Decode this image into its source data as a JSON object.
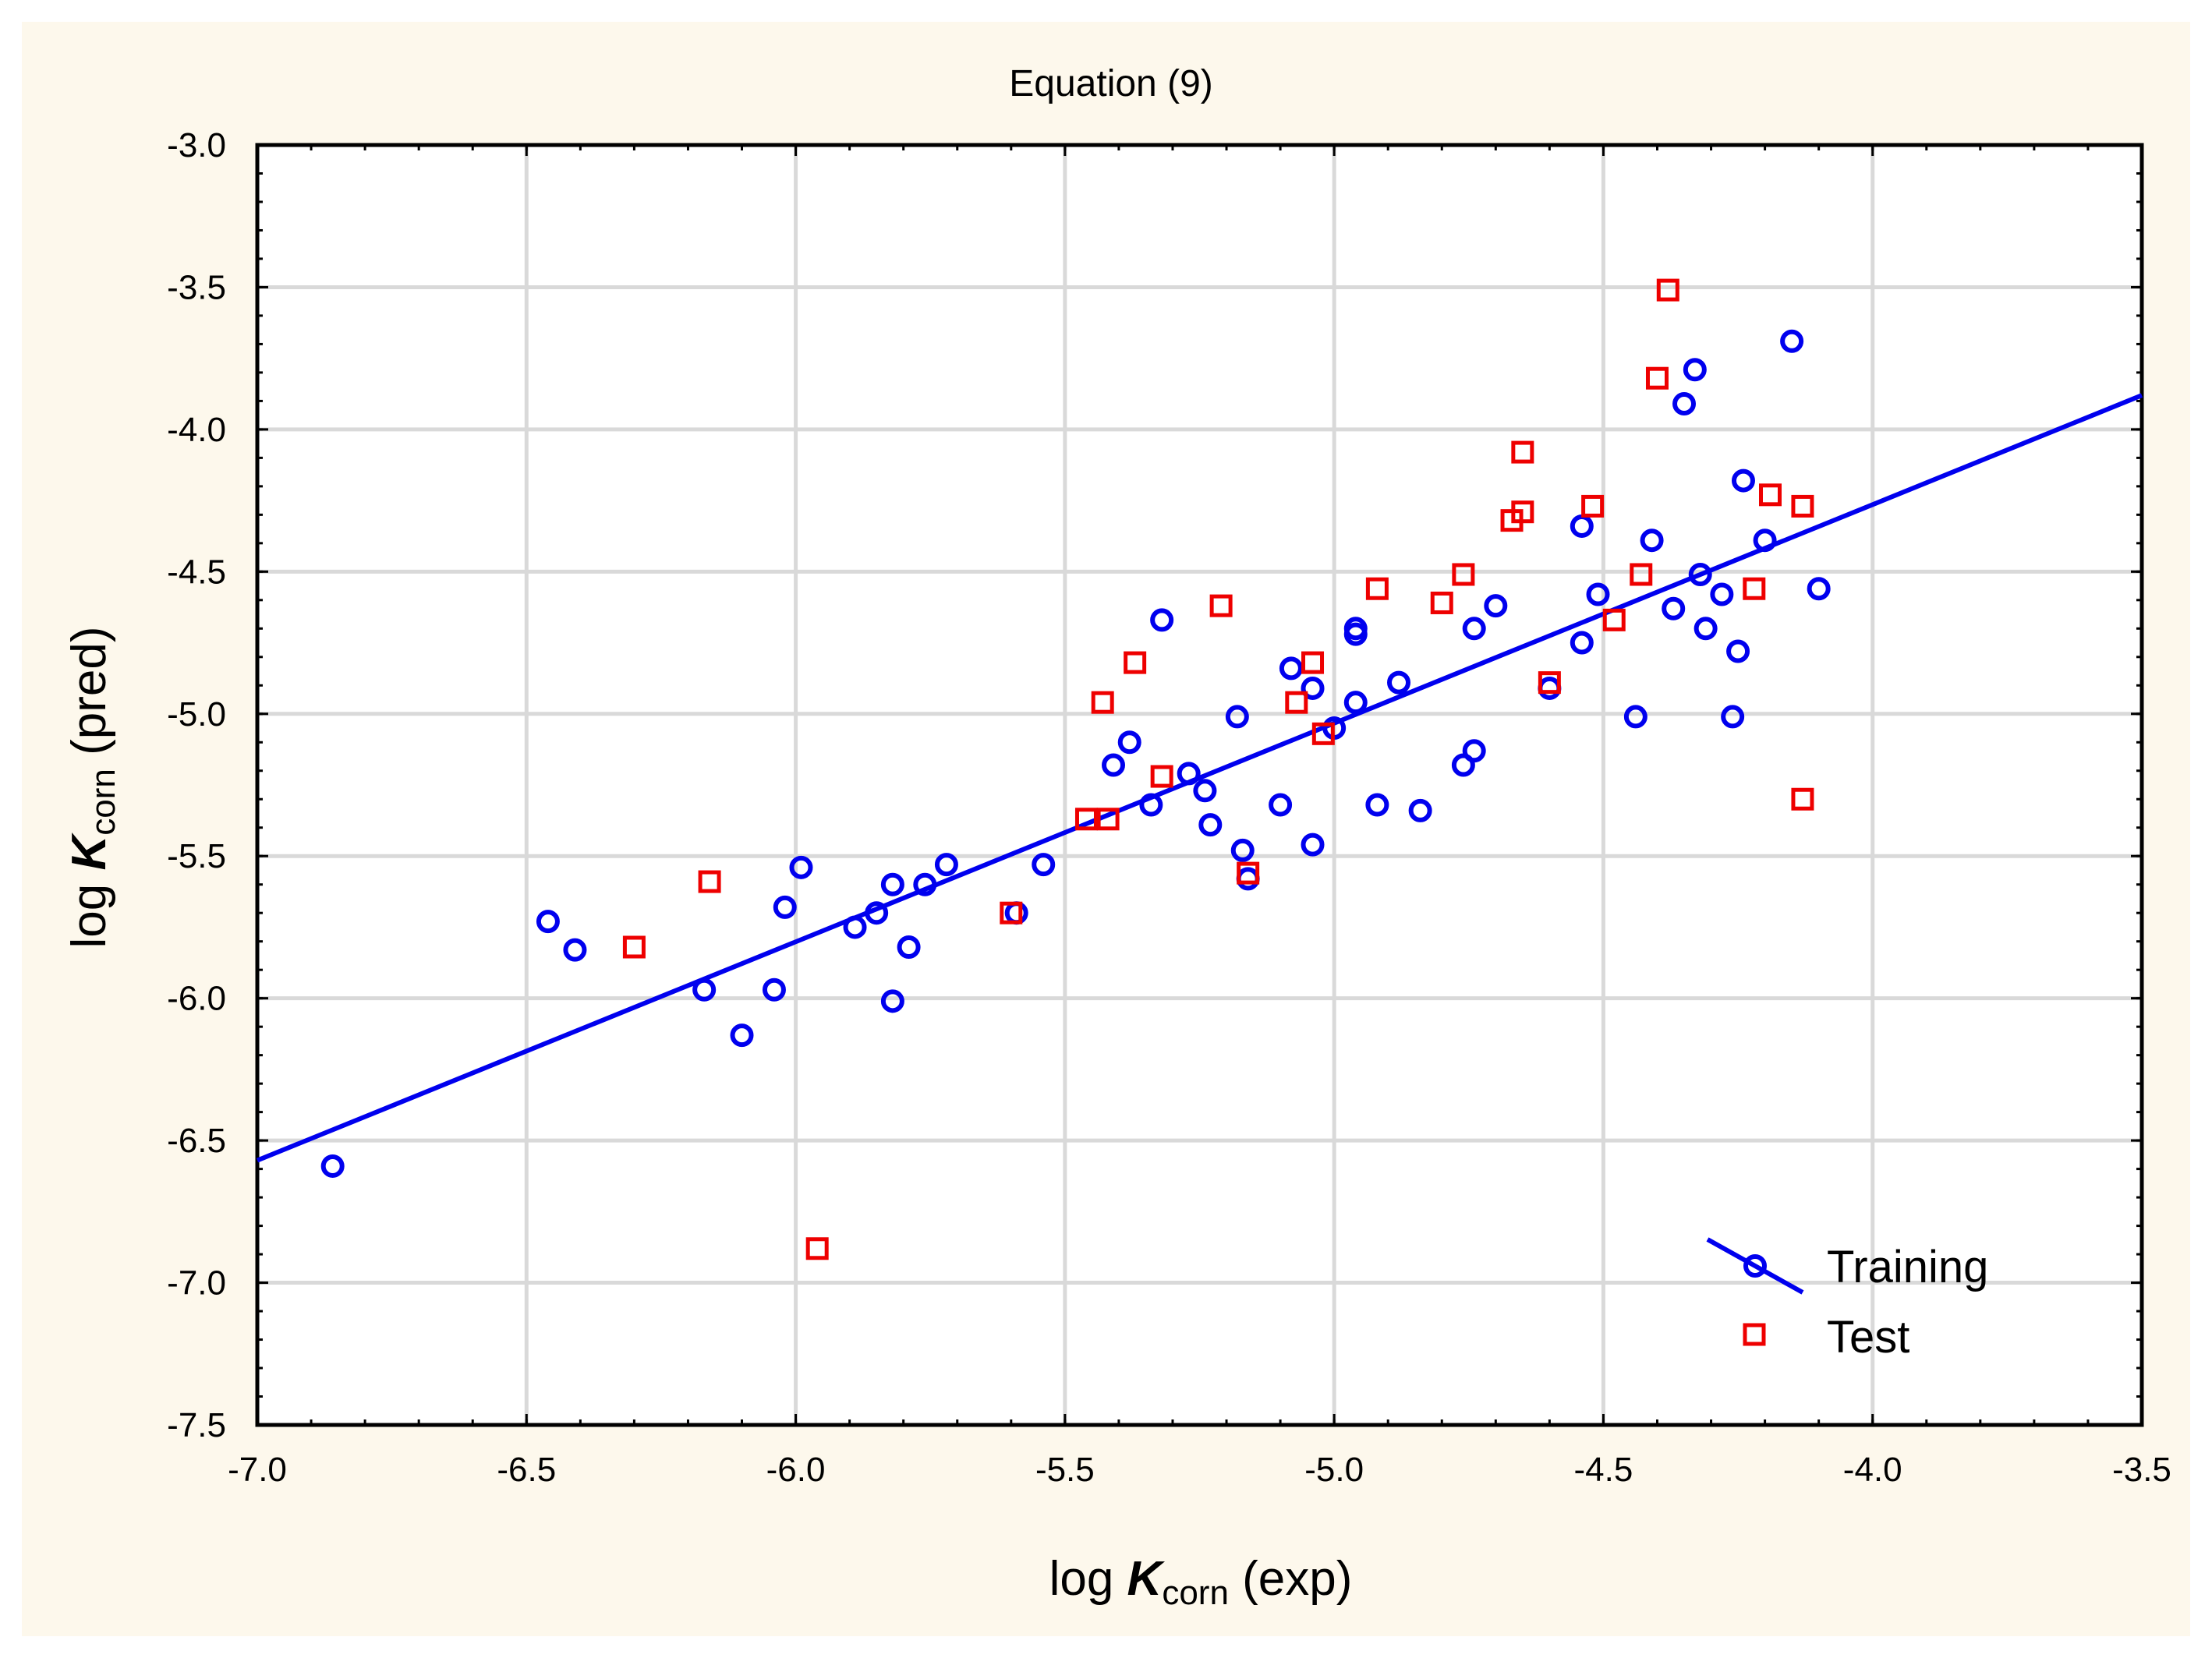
{
  "chart_data": {
    "type": "scatter",
    "title": "Equation (9)",
    "xlabel": {
      "prefix": "log ",
      "symbol": "K",
      "subscript": "corn",
      "suffix": " (exp)"
    },
    "ylabel": {
      "prefix": "log ",
      "symbol": "K",
      "subscript": "corn",
      "suffix": " (pred)"
    },
    "xlim": [
      -7.0,
      -3.5
    ],
    "ylim": [
      -7.5,
      -3.0
    ],
    "xticks": [
      "-7.0",
      "-6.5",
      "-6.0",
      "-5.5",
      "-5.0",
      "-4.5",
      "-4.0",
      "-3.5"
    ],
    "yticks": [
      "-3.0",
      "-3.5",
      "-4.0",
      "-4.5",
      "-5.0",
      "-5.5",
      "-6.0",
      "-6.5",
      "-7.0",
      "-7.5"
    ],
    "grid": true,
    "legend_position": "bottom-right",
    "fit_line": {
      "x": [
        -7.0,
        -3.5
      ],
      "y": [
        -6.57,
        -3.88
      ],
      "color": "#0000ee"
    },
    "series": [
      {
        "name": "Training",
        "marker": "circle",
        "color": "#0000ee",
        "points": [
          [
            -6.86,
            -6.59
          ],
          [
            -6.46,
            -5.73
          ],
          [
            -6.41,
            -5.83
          ],
          [
            -6.17,
            -5.97
          ],
          [
            -6.1,
            -6.13
          ],
          [
            -6.04,
            -5.97
          ],
          [
            -6.02,
            -5.68
          ],
          [
            -5.99,
            -5.54
          ],
          [
            -5.89,
            -5.75
          ],
          [
            -5.85,
            -5.7
          ],
          [
            -5.82,
            -5.6
          ],
          [
            -5.82,
            -6.01
          ],
          [
            -5.79,
            -5.82
          ],
          [
            -5.76,
            -5.6
          ],
          [
            -5.72,
            -5.53
          ],
          [
            -5.59,
            -5.7
          ],
          [
            -5.54,
            -5.53
          ],
          [
            -5.41,
            -5.18
          ],
          [
            -5.38,
            -5.1
          ],
          [
            -5.34,
            -5.32
          ],
          [
            -5.32,
            -4.67
          ],
          [
            -5.27,
            -5.21
          ],
          [
            -5.24,
            -5.27
          ],
          [
            -5.23,
            -5.39
          ],
          [
            -5.18,
            -5.01
          ],
          [
            -5.17,
            -5.48
          ],
          [
            -5.16,
            -5.58
          ],
          [
            -5.1,
            -5.32
          ],
          [
            -5.08,
            -4.84
          ],
          [
            -5.04,
            -4.91
          ],
          [
            -5.04,
            -5.46
          ],
          [
            -5.0,
            -5.05
          ],
          [
            -4.96,
            -4.7
          ],
          [
            -4.96,
            -4.72
          ],
          [
            -4.96,
            -4.96
          ],
          [
            -4.92,
            -5.32
          ],
          [
            -4.88,
            -4.89
          ],
          [
            -4.84,
            -5.34
          ],
          [
            -4.76,
            -5.18
          ],
          [
            -4.74,
            -5.13
          ],
          [
            -4.74,
            -4.7
          ],
          [
            -4.7,
            -4.62
          ],
          [
            -4.6,
            -4.91
          ],
          [
            -4.54,
            -4.34
          ],
          [
            -4.54,
            -4.75
          ],
          [
            -4.51,
            -4.58
          ],
          [
            -4.44,
            -5.01
          ],
          [
            -4.41,
            -4.39
          ],
          [
            -4.37,
            -4.63
          ],
          [
            -4.35,
            -3.91
          ],
          [
            -4.33,
            -3.79
          ],
          [
            -4.32,
            -4.51
          ],
          [
            -4.31,
            -4.7
          ],
          [
            -4.28,
            -4.58
          ],
          [
            -4.25,
            -4.78
          ],
          [
            -4.26,
            -5.01
          ],
          [
            -4.24,
            -4.18
          ],
          [
            -4.2,
            -4.39
          ],
          [
            -4.15,
            -3.69
          ],
          [
            -4.1,
            -4.56
          ]
        ]
      },
      {
        "name": "Test",
        "marker": "square",
        "color": "#ee0000",
        "points": [
          [
            -6.3,
            -5.82
          ],
          [
            -6.16,
            -5.59
          ],
          [
            -5.96,
            -6.88
          ],
          [
            -5.6,
            -5.7
          ],
          [
            -5.46,
            -5.37
          ],
          [
            -5.42,
            -5.37
          ],
          [
            -5.43,
            -4.96
          ],
          [
            -5.37,
            -4.82
          ],
          [
            -5.32,
            -5.22
          ],
          [
            -5.21,
            -4.62
          ],
          [
            -5.16,
            -5.56
          ],
          [
            -5.07,
            -4.96
          ],
          [
            -5.04,
            -4.82
          ],
          [
            -5.02,
            -5.07
          ],
          [
            -4.92,
            -4.56
          ],
          [
            -4.8,
            -4.61
          ],
          [
            -4.76,
            -4.51
          ],
          [
            -4.67,
            -4.32
          ],
          [
            -4.65,
            -4.29
          ],
          [
            -4.65,
            -4.08
          ],
          [
            -4.6,
            -4.89
          ],
          [
            -4.52,
            -4.27
          ],
          [
            -4.48,
            -4.67
          ],
          [
            -4.43,
            -4.51
          ],
          [
            -4.4,
            -3.82
          ],
          [
            -4.38,
            -3.51
          ],
          [
            -4.22,
            -4.56
          ],
          [
            -4.19,
            -4.23
          ],
          [
            -4.13,
            -4.27
          ],
          [
            -4.13,
            -5.3
          ]
        ]
      }
    ]
  }
}
